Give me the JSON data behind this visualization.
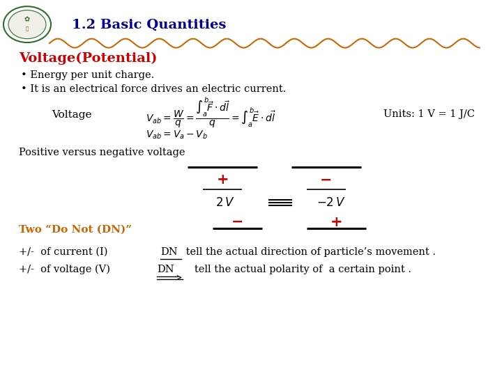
{
  "title": "1.2 Basic Quantities",
  "title_color": "#00008B",
  "bg_color": "#FFFFFF",
  "section_title": "Voltage(Potential)",
  "section_title_color": "#CC0000",
  "bullet1": "Energy per unit charge.",
  "bullet2": "It is an electrical force drives an electric current.",
  "voltage_label": "Voltage",
  "units_text": "Units: 1 V = 1 J/C",
  "pos_neg_label": "Positive versus negative voltage",
  "two_dn_label": "Two “Do Not (DN)”",
  "two_dn_color": "#CC6600",
  "dn_line1": "+/-  of current (I) ",
  "dn_dn1": "DN",
  "dn_rest1": " tell the actual direction of particle’s movement .",
  "dn_line2": "+/-  of voltage (V)",
  "dn_dn2": "DN",
  "dn_rest2": "   tell the actual polarity of  a certain point .",
  "wavy_color": "#CC6600",
  "line_color": "#000000",
  "red_color": "#CC0000",
  "orange_color": "#CC6600"
}
